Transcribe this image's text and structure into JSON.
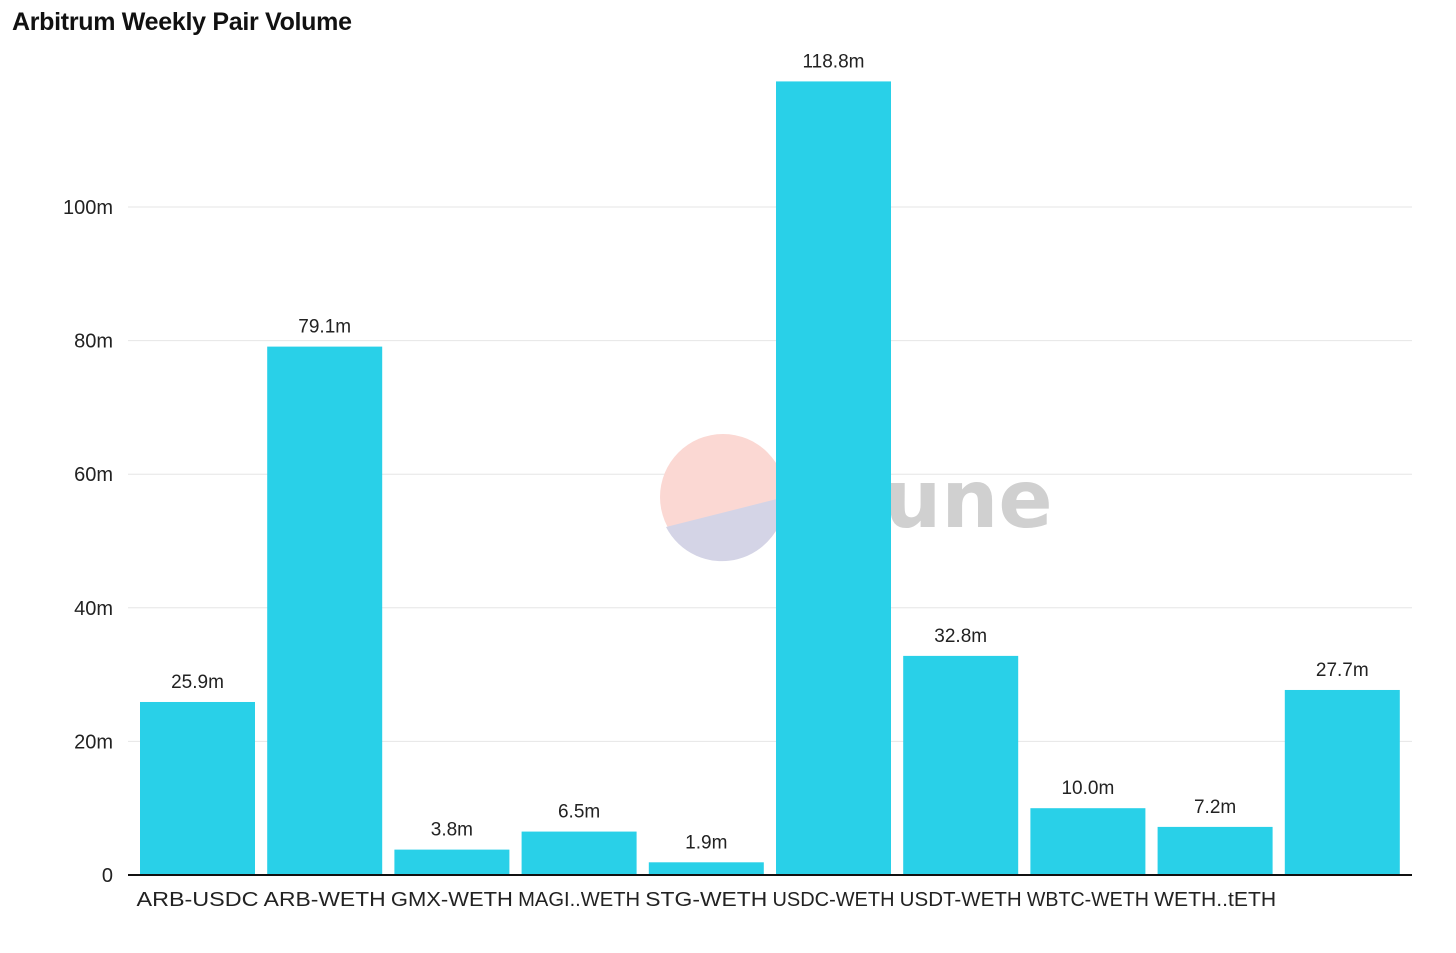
{
  "chart_data": {
    "type": "bar",
    "title": "Arbitrum Weekly Pair Volume",
    "categories": [
      "ARB-USDC",
      "ARB-WETH",
      "GMX-WETH",
      "MAGI..WETH",
      "STG-WETH",
      "USDC-WETH",
      "USDT-WETH",
      "WBTC-WETH",
      "WETH..tETH",
      ""
    ],
    "values": [
      25.9,
      79.1,
      3.8,
      6.5,
      1.9,
      118.8,
      32.8,
      10.0,
      7.2,
      27.7
    ],
    "value_labels": [
      "25.9m",
      "79.1m",
      "3.8m",
      "6.5m",
      "1.9m",
      "118.8m",
      "32.8m",
      "10.0m",
      "7.2m",
      "27.7m"
    ],
    "y_unit": "million",
    "yticks": [
      0,
      20,
      40,
      60,
      80,
      100
    ],
    "ytick_labels": [
      "0",
      "20m",
      "40m",
      "60m",
      "80m",
      "100m"
    ],
    "ylim": [
      0,
      125
    ],
    "xlabel": "",
    "ylabel": "",
    "grid": true,
    "bar_color": "#29d0e8"
  },
  "watermark": {
    "text": "Dune",
    "text_color": "#d0d0d0",
    "logo_colors": [
      "#fbd8d3",
      "#d4d4e6"
    ]
  }
}
